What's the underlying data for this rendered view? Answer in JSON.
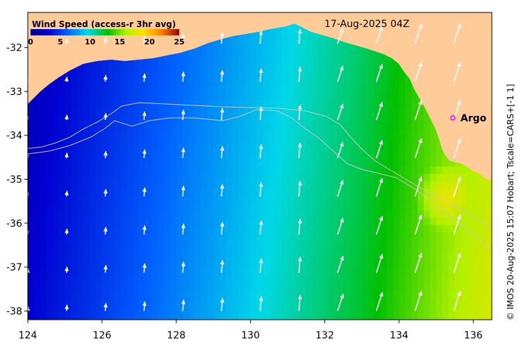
{
  "title": "17-Aug-2025 04Z",
  "colorbar": {
    "title": "Wind Speed (access-r 3hr avg)",
    "ticks": [
      "0",
      "5",
      "10",
      "15",
      "20",
      "25"
    ],
    "range": [
      0,
      25
    ]
  },
  "credit": "© IMOS 20-Aug-2025 15:07 Hobart; Tscale=CARS+[-1 1]",
  "marker": {
    "label": "Argo",
    "lon": 135.45,
    "lat": -33.6,
    "color": "#ff00ff"
  },
  "axes": {
    "x_ticks": [
      "124",
      "126",
      "128",
      "130",
      "132",
      "134",
      "136"
    ],
    "y_ticks": [
      "-32",
      "-33",
      "-34",
      "-35",
      "-36",
      "-37",
      "-38"
    ],
    "lon_range": [
      124,
      136.5
    ],
    "lat_range": [
      -38.2,
      -31.2
    ]
  },
  "colors": {
    "land": "#ffcc99",
    "arrows": "#ffffff",
    "bathymetry_lines": "#c8c8c8"
  }
}
